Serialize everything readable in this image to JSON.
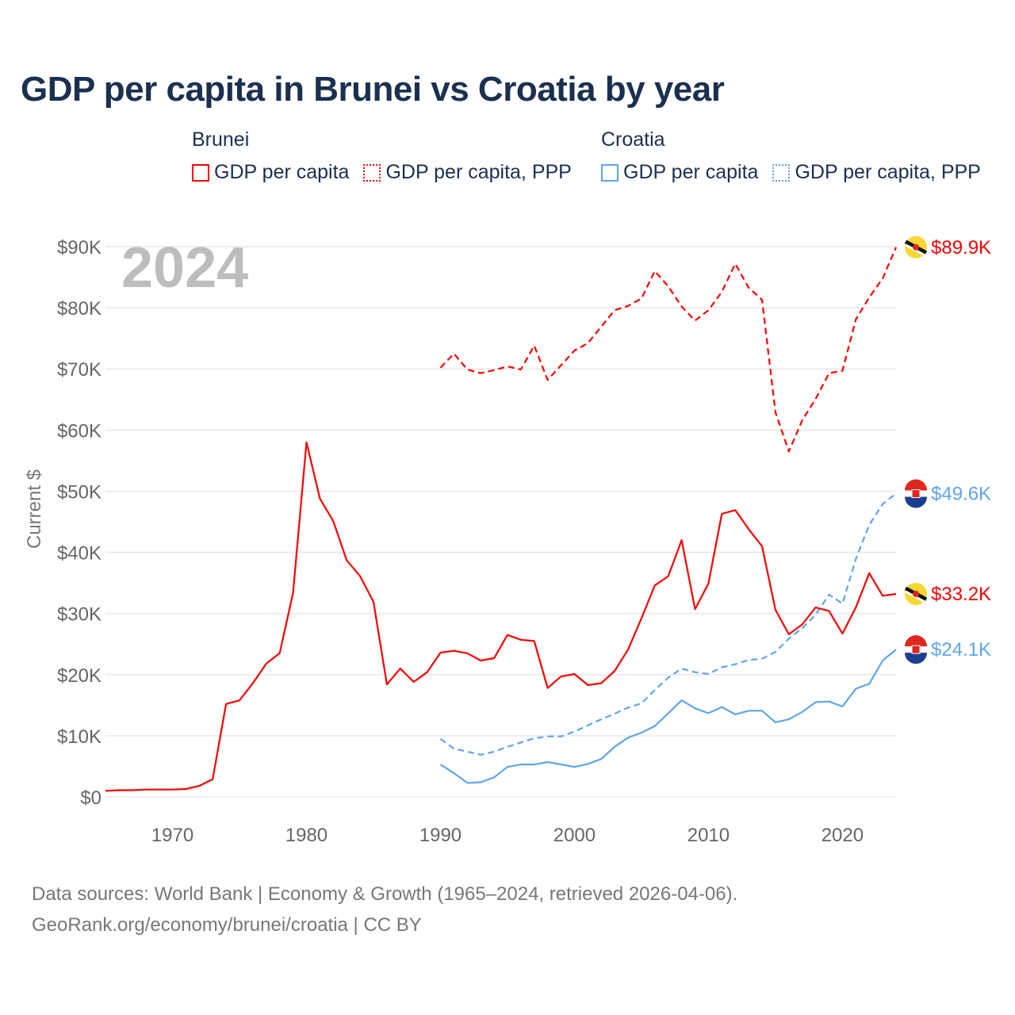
{
  "title": "GDP per capita in Brunei vs Croatia by year",
  "year_watermark": "2024",
  "legend": [
    {
      "group": "Brunei",
      "items": [
        {
          "label": "GDP per capita",
          "style": "solid",
          "color": "#ff0000"
        },
        {
          "label": "GDP per capita, PPP",
          "style": "dotted",
          "color": "#ff0000"
        }
      ]
    },
    {
      "group": "Croatia",
      "items": [
        {
          "label": "GDP per capita",
          "style": "solid",
          "color": "#5fa5ee"
        },
        {
          "label": "GDP per capita, PPP",
          "style": "dotted",
          "color": "#5fa5ee"
        }
      ]
    }
  ],
  "footer": {
    "line1": "Data sources: World Bank | Economy & Growth (1965–2024, retrieved 2026-04-06).",
    "line2": "GeoRank.org/economy/brunei/croatia | CC BY"
  },
  "chart_data": {
    "type": "line",
    "title": "GDP per capita in Brunei vs Croatia by year",
    "xlabel": "",
    "ylabel": "Current $",
    "xlim": [
      1965,
      2024
    ],
    "ylim": [
      0,
      90000
    ],
    "x_ticks": [
      1970,
      1980,
      1990,
      2000,
      2010,
      2020
    ],
    "y_ticks": [
      0,
      10000,
      20000,
      30000,
      40000,
      50000,
      60000,
      70000,
      80000,
      90000
    ],
    "y_tick_labels": [
      "$0",
      "$10K",
      "$20K",
      "$30K",
      "$40K",
      "$50K",
      "$60K",
      "$70K",
      "$80K",
      "$90K"
    ],
    "grid": true,
    "legend_position": "top",
    "series": [
      {
        "name": "Brunei GDP per capita, PPP",
        "color": "#ff0000",
        "dash": true,
        "end_label": "$89.9K",
        "flag": "brunei",
        "x_start": 1990,
        "values": [
          70200,
          72500,
          69900,
          69300,
          69800,
          70400,
          69900,
          73800,
          68200,
          70600,
          73000,
          74200,
          76900,
          79600,
          80300,
          81500,
          86000,
          83500,
          80200,
          77900,
          79600,
          82600,
          87200,
          83300,
          81300,
          62900,
          56500,
          61600,
          65100,
          69300,
          69700,
          78100,
          81700,
          84800,
          89900
        ]
      },
      {
        "name": "Croatia GDP per capita, PPP",
        "color": "#5fa5ee",
        "dash": true,
        "end_label": "$49.6K",
        "flag": "croatia",
        "x_start": 1990,
        "values": [
          9500,
          7900,
          7400,
          6900,
          7400,
          8200,
          8900,
          9600,
          9900,
          9900,
          10700,
          11700,
          12700,
          13600,
          14600,
          15300,
          17500,
          19500,
          21000,
          20400,
          20100,
          21200,
          21700,
          22400,
          22600,
          23700,
          25900,
          27600,
          29800,
          33100,
          31600,
          38900,
          44500,
          47900,
          49600
        ]
      },
      {
        "name": "Brunei GDP per capita",
        "color": "#ff0000",
        "dash": false,
        "end_label": "$33.2K",
        "flag": "brunei",
        "x_start": 1965,
        "values": [
          1000,
          1100,
          1100,
          1200,
          1200,
          1200,
          1300,
          1800,
          2900,
          15200,
          15800,
          18600,
          21800,
          23500,
          33400,
          58000,
          48800,
          45100,
          38700,
          36100,
          31900,
          18400,
          21000,
          18800,
          20400,
          23600,
          23900,
          23500,
          22300,
          22700,
          26500,
          25700,
          25500,
          17800,
          19700,
          20100,
          18300,
          18600,
          20600,
          24100,
          29200,
          34600,
          36100,
          42000,
          30700,
          34900,
          46300,
          46900,
          43800,
          41000,
          30600,
          26600,
          28200,
          31000,
          30400,
          26700,
          31000,
          36600,
          32900,
          33200
        ]
      },
      {
        "name": "Croatia GDP per capita",
        "color": "#5fa5ee",
        "dash": false,
        "end_label": "$24.1K",
        "flag": "croatia",
        "x_start": 1990,
        "values": [
          5300,
          3900,
          2300,
          2400,
          3200,
          4900,
          5300,
          5300,
          5700,
          5300,
          4900,
          5400,
          6200,
          8200,
          9700,
          10500,
          11600,
          13700,
          15800,
          14500,
          13700,
          14700,
          13500,
          14100,
          14100,
          12200,
          12700,
          13900,
          15500,
          15600,
          14800,
          17700,
          18500,
          22300,
          24100
        ]
      }
    ]
  }
}
